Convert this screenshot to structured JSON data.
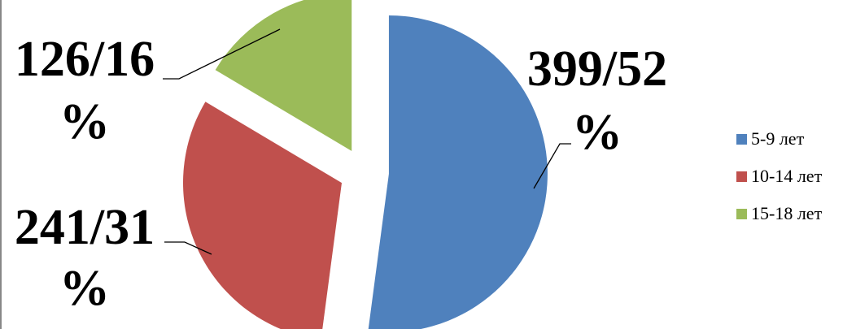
{
  "chart_data": {
    "type": "pie",
    "exploded": true,
    "slices": [
      {
        "category": "5-9 лет",
        "value": 399,
        "percent": 52,
        "label_lines": [
          "399/52",
          "%"
        ],
        "color": "#4F81BD"
      },
      {
        "category": "10-14 лет",
        "value": 241,
        "percent": 31,
        "label_lines": [
          "241/31",
          "%"
        ],
        "color": "#C0504D"
      },
      {
        "category": "15-18 лет",
        "value": 126,
        "percent": 16,
        "label_lines": [
          "126/16",
          "%"
        ],
        "color": "#9BBB59"
      }
    ],
    "legend": {
      "position": "right",
      "entries": [
        "5-9 лет",
        "10-14 лет",
        "15-18 лет"
      ]
    }
  }
}
